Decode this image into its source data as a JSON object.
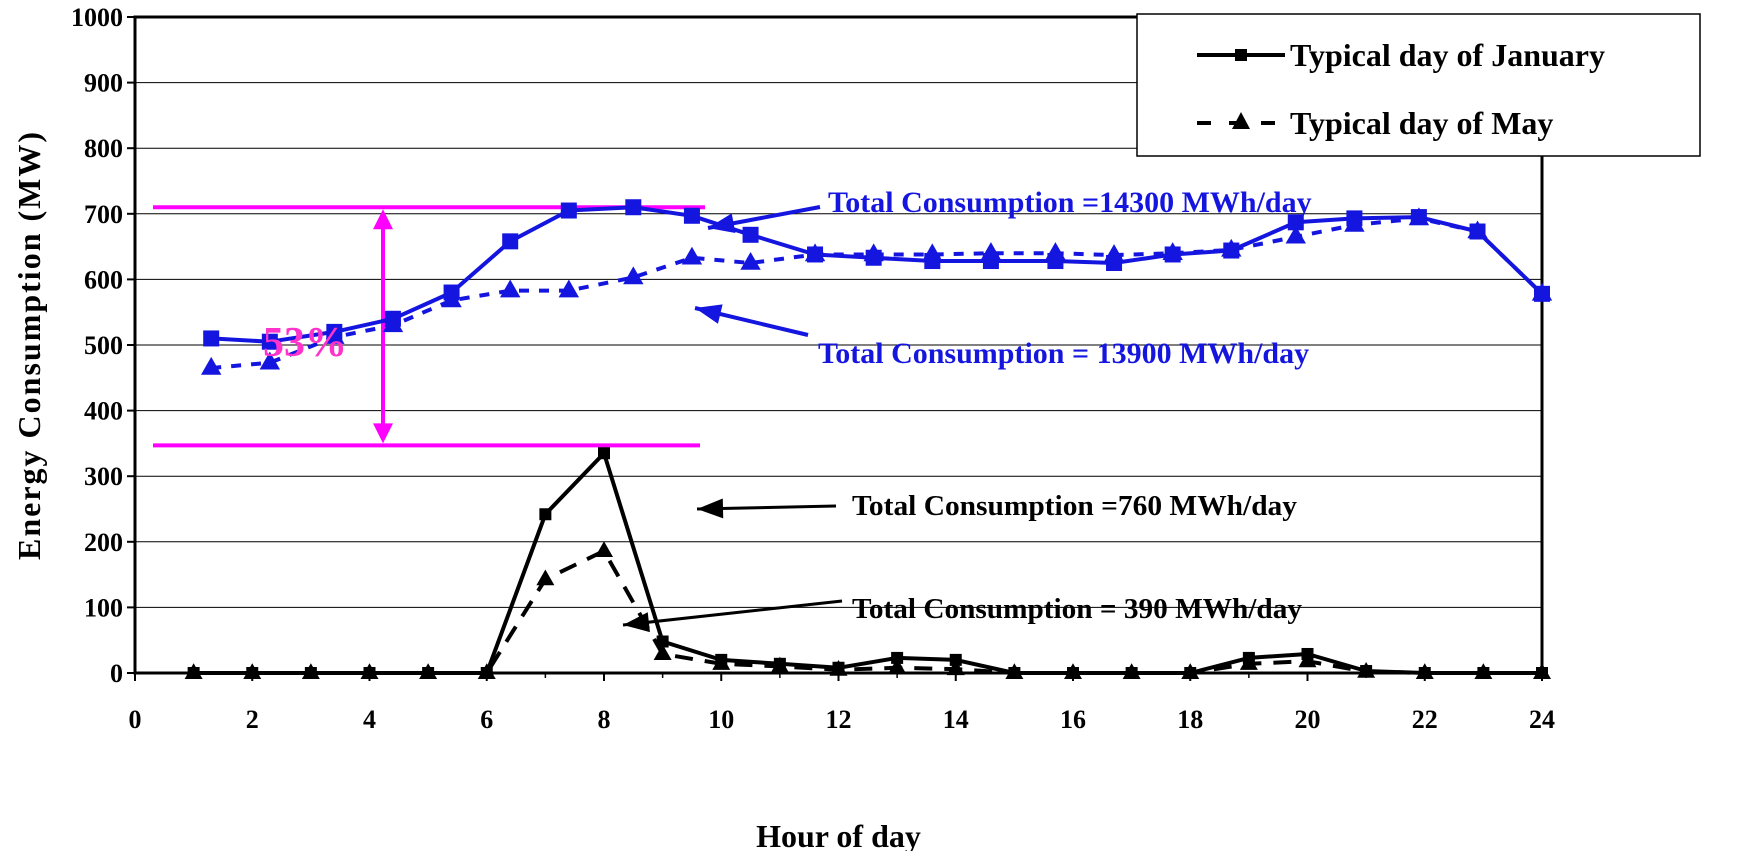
{
  "colors": {
    "blue": "#1515e0",
    "black": "#000000",
    "magenta": "#ff00ff",
    "pct": "#ff33cc",
    "grid": "#000000"
  },
  "chart_data": {
    "type": "line",
    "xlabel": "Hour of day",
    "ylabel": "Energy Consumption (MW)",
    "xlim": [
      0,
      24
    ],
    "ylim": [
      0,
      1000
    ],
    "xticks": [
      0,
      2,
      4,
      6,
      8,
      10,
      12,
      14,
      16,
      18,
      20,
      22,
      24
    ],
    "yticks": [
      0,
      100,
      200,
      300,
      400,
      500,
      600,
      700,
      800,
      900,
      1000
    ],
    "grid": "horizontal",
    "legend": {
      "placement": "top-right",
      "entries": [
        {
          "label": "Typical day of January",
          "style": "solid",
          "marker": "square"
        },
        {
          "label": "Typical day of May",
          "style": "dashed",
          "marker": "triangle"
        }
      ]
    },
    "series": [
      {
        "group": "upper",
        "style": "solid",
        "marker": "square",
        "color": "#1515e0",
        "x": [
          1.3,
          2.3,
          3.4,
          4.4,
          5.4,
          6.4,
          7.4,
          8.5,
          9.5,
          10.5,
          11.6,
          12.6,
          13.6,
          14.6,
          15.7,
          16.7,
          17.7,
          18.7,
          19.8,
          20.8,
          21.9,
          22.9,
          24
        ],
        "y": [
          510,
          505,
          520,
          540,
          580,
          658,
          705,
          710,
          697,
          668,
          638,
          633,
          628,
          628,
          628,
          625,
          638,
          644,
          687,
          693,
          695,
          673,
          578
        ]
      },
      {
        "group": "upper",
        "style": "dashed",
        "marker": "triangle",
        "color": "#1515e0",
        "x": [
          1.3,
          2.3,
          3.4,
          4.4,
          5.4,
          6.4,
          7.4,
          8.5,
          9.5,
          10.5,
          11.6,
          12.6,
          13.6,
          14.6,
          15.7,
          16.7,
          17.7,
          18.7,
          19.8,
          20.8,
          21.9,
          22.9,
          24
        ],
        "y": [
          465,
          473,
          512,
          530,
          568,
          583,
          583,
          603,
          633,
          625,
          638,
          638,
          638,
          640,
          640,
          637,
          640,
          645,
          665,
          683,
          693,
          673,
          578
        ]
      },
      {
        "group": "lower",
        "style": "solid",
        "marker": "square",
        "color": "#000000",
        "x": [
          1,
          2,
          3,
          4,
          5,
          6,
          7,
          8,
          9,
          10,
          11,
          12,
          13,
          14,
          15,
          16,
          17,
          18,
          19,
          20,
          21,
          22,
          23,
          24
        ],
        "y": [
          0,
          0,
          0,
          0,
          0,
          0,
          242,
          335,
          48,
          20,
          14,
          8,
          23,
          20,
          0,
          0,
          0,
          0,
          23,
          29,
          3,
          0,
          0,
          0
        ]
      },
      {
        "group": "lower",
        "style": "dashed",
        "marker": "triangle",
        "color": "#000000",
        "x": [
          1,
          2,
          3,
          4,
          5,
          6,
          7,
          8,
          9,
          10,
          11,
          12,
          13,
          14,
          15,
          16,
          17,
          18,
          19,
          20,
          21,
          22,
          23,
          24
        ],
        "y": [
          0,
          0,
          0,
          0,
          0,
          0,
          143,
          186,
          29,
          14,
          10,
          5,
          8,
          6,
          0,
          0,
          0,
          0,
          14,
          18,
          2,
          0,
          0,
          0
        ]
      }
    ],
    "annotations": {
      "jan_upper": "Total Consumption =14300 MWh/day",
      "may_upper": "Total Consumption = 13900 MWh/day",
      "jan_lower": "Total Consumption =760 MWh/day",
      "may_lower": "Total Consumption = 390 MWh/day",
      "percent": "53%",
      "range_top": 710,
      "range_bottom": 347
    }
  }
}
